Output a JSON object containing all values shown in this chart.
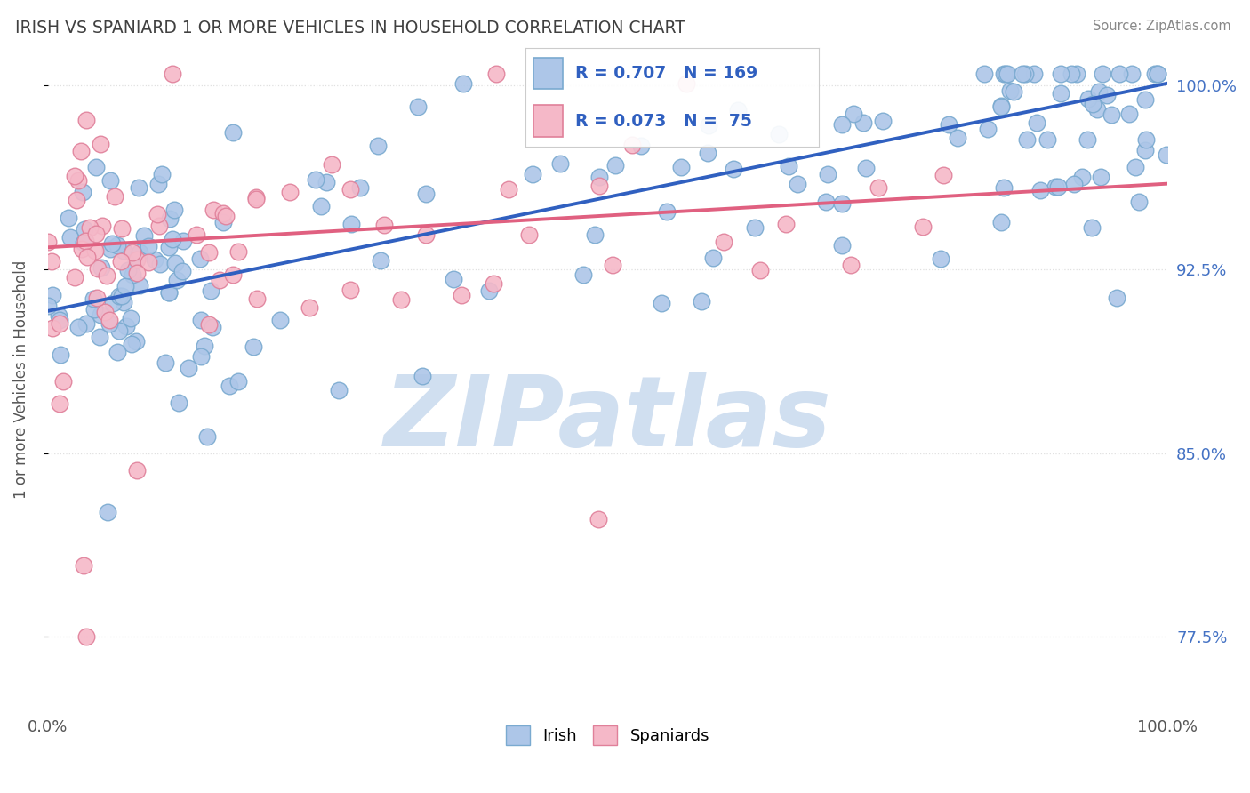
{
  "title": "IRISH VS SPANIARD 1 OR MORE VEHICLES IN HOUSEHOLD CORRELATION CHART",
  "source": "Source: ZipAtlas.com",
  "ylabel": "1 or more Vehicles in Household",
  "xlim": [
    0.0,
    1.0
  ],
  "ylim": [
    0.745,
    1.015
  ],
  "yticks": [
    0.775,
    0.85,
    0.925,
    1.0
  ],
  "ytick_labels": [
    "77.5%",
    "85.0%",
    "92.5%",
    "100.0%"
  ],
  "xticks": [
    0.0,
    1.0
  ],
  "xtick_labels": [
    "0.0%",
    "100.0%"
  ],
  "irish_R": 0.707,
  "irish_N": 169,
  "spaniard_R": 0.073,
  "spaniard_N": 75,
  "irish_color": "#adc6e8",
  "irish_edge_color": "#7aaad0",
  "spaniard_color": "#f5b8c8",
  "spaniard_edge_color": "#e0809a",
  "irish_line_color": "#3060c0",
  "spaniard_line_color": "#e06080",
  "background_color": "#ffffff",
  "watermark_text": "ZIPatlas",
  "watermark_color": "#d0dff0",
  "legend_irish_label": "Irish",
  "legend_spaniard_label": "Spaniards",
  "title_color": "#404040",
  "axis_label_color": "#555555",
  "tick_color_right": "#4472c4",
  "grid_color": "#e0e0e0",
  "irish_trend_x0": 0.0,
  "irish_trend_y0": 0.908,
  "irish_trend_x1": 1.0,
  "irish_trend_y1": 1.001,
  "spaniard_trend_x0": 0.0,
  "spaniard_trend_y0": 0.934,
  "spaniard_trend_x1": 1.0,
  "spaniard_trend_y1": 0.96
}
